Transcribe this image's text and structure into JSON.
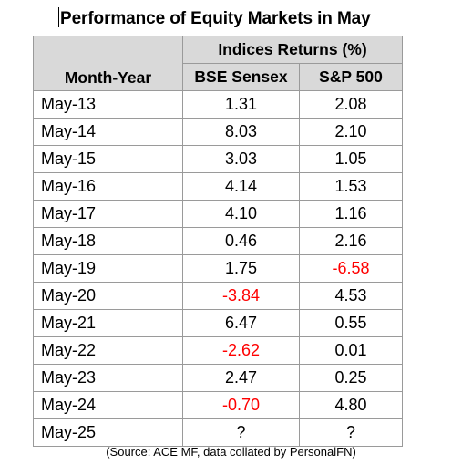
{
  "title": "Performance of Equity Markets in May",
  "table": {
    "group_header": "Indices Returns (%)",
    "columns": [
      "Month-Year",
      "BSE Sensex",
      "S&P 500"
    ],
    "rows": [
      {
        "month": "May-13",
        "sensex": "1.31",
        "sp500": "2.08",
        "sensex_neg": false,
        "sp500_neg": false
      },
      {
        "month": "May-14",
        "sensex": "8.03",
        "sp500": "2.10",
        "sensex_neg": false,
        "sp500_neg": false
      },
      {
        "month": "May-15",
        "sensex": "3.03",
        "sp500": "1.05",
        "sensex_neg": false,
        "sp500_neg": false
      },
      {
        "month": "May-16",
        "sensex": "4.14",
        "sp500": "1.53",
        "sensex_neg": false,
        "sp500_neg": false
      },
      {
        "month": "May-17",
        "sensex": "4.10",
        "sp500": "1.16",
        "sensex_neg": false,
        "sp500_neg": false
      },
      {
        "month": "May-18",
        "sensex": "0.46",
        "sp500": "2.16",
        "sensex_neg": false,
        "sp500_neg": false
      },
      {
        "month": "May-19",
        "sensex": "1.75",
        "sp500": "-6.58",
        "sensex_neg": false,
        "sp500_neg": true
      },
      {
        "month": "May-20",
        "sensex": "-3.84",
        "sp500": "4.53",
        "sensex_neg": true,
        "sp500_neg": false
      },
      {
        "month": "May-21",
        "sensex": "6.47",
        "sp500": "0.55",
        "sensex_neg": false,
        "sp500_neg": false
      },
      {
        "month": "May-22",
        "sensex": "-2.62",
        "sp500": "0.01",
        "sensex_neg": true,
        "sp500_neg": false
      },
      {
        "month": "May-23",
        "sensex": "2.47",
        "sp500": "0.25",
        "sensex_neg": false,
        "sp500_neg": false
      },
      {
        "month": "May-24",
        "sensex": "-0.70",
        "sp500": "4.80",
        "sensex_neg": true,
        "sp500_neg": false
      },
      {
        "month": "May-25",
        "sensex": "?",
        "sp500": "?",
        "sensex_neg": false,
        "sp500_neg": false
      }
    ]
  },
  "source": "(Source: ACE MF, data collated by PersonalFN)",
  "colors": {
    "negative": "#ff0000",
    "header_bg": "#d9d9d9",
    "border": "#9a9a9a"
  }
}
